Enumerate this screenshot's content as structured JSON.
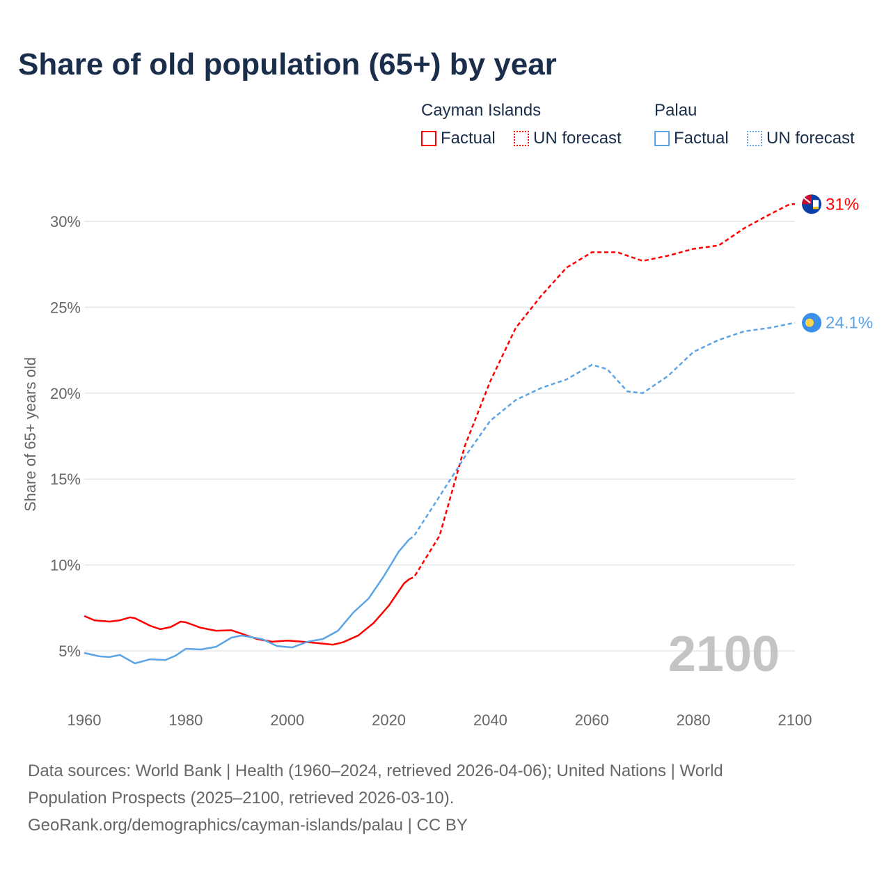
{
  "chart_data": {
    "type": "line",
    "title": "Share of old population (65+) by year",
    "xlabel": "",
    "ylabel": "Share of 65+ years old",
    "xlim": [
      1960,
      2100
    ],
    "x_ticks": [
      "1960",
      "1980",
      "2000",
      "2020",
      "2040",
      "2060",
      "2080",
      "2100"
    ],
    "y_ticks": [
      "5%",
      "10%",
      "15%",
      "20%",
      "25%",
      "30%"
    ],
    "y_tick_values": [
      5,
      10,
      15,
      20,
      25,
      30
    ],
    "grid": true,
    "year_watermark": "2100",
    "legend": {
      "placement": "top-right",
      "groups": [
        {
          "name": "Cayman Islands",
          "factual": "Factual",
          "forecast": "UN forecast"
        },
        {
          "name": "Palau",
          "factual": "Factual",
          "forecast": "UN forecast"
        }
      ]
    },
    "series": [
      {
        "name": "Cayman Islands",
        "color": "#ff0000",
        "end_label": "31%",
        "flag": "cayman-islands-flag",
        "factual": [
          [
            1960,
            7.03
          ],
          [
            1962,
            6.78
          ],
          [
            1965,
            6.7
          ],
          [
            1967,
            6.78
          ],
          [
            1969,
            6.95
          ],
          [
            1970,
            6.9
          ],
          [
            1973,
            6.46
          ],
          [
            1975,
            6.26
          ],
          [
            1977,
            6.38
          ],
          [
            1979,
            6.7
          ],
          [
            1980,
            6.66
          ],
          [
            1983,
            6.34
          ],
          [
            1986,
            6.17
          ],
          [
            1989,
            6.2
          ],
          [
            1991,
            6.0
          ],
          [
            1994,
            5.69
          ],
          [
            1997,
            5.53
          ],
          [
            2000,
            5.6
          ],
          [
            2003,
            5.53
          ],
          [
            2006,
            5.45
          ],
          [
            2009,
            5.36
          ],
          [
            2011,
            5.5
          ],
          [
            2014,
            5.9
          ],
          [
            2017,
            6.62
          ],
          [
            2020,
            7.63
          ],
          [
            2023,
            8.93
          ],
          [
            2024,
            9.17
          ]
        ],
        "forecast": [
          [
            2024,
            9.17
          ],
          [
            2025,
            9.3
          ],
          [
            2030,
            11.7
          ],
          [
            2035,
            16.95
          ],
          [
            2040,
            20.7
          ],
          [
            2045,
            23.8
          ],
          [
            2050,
            25.66
          ],
          [
            2055,
            27.3
          ],
          [
            2060,
            28.2
          ],
          [
            2065,
            28.2
          ],
          [
            2070,
            27.7
          ],
          [
            2075,
            28.0
          ],
          [
            2080,
            28.4
          ],
          [
            2085,
            28.6
          ],
          [
            2090,
            29.6
          ],
          [
            2095,
            30.4
          ],
          [
            2099,
            31.0
          ],
          [
            2100,
            31.0
          ]
        ]
      },
      {
        "name": "Palau",
        "color": "#5ba4e6",
        "end_label": "24.1%",
        "flag": "palau-flag",
        "factual": [
          [
            1960,
            4.88
          ],
          [
            1963,
            4.68
          ],
          [
            1965,
            4.64
          ],
          [
            1967,
            4.76
          ],
          [
            1970,
            4.27
          ],
          [
            1973,
            4.51
          ],
          [
            1976,
            4.47
          ],
          [
            1978,
            4.72
          ],
          [
            1980,
            5.12
          ],
          [
            1983,
            5.08
          ],
          [
            1986,
            5.24
          ],
          [
            1989,
            5.77
          ],
          [
            1991,
            5.89
          ],
          [
            1995,
            5.69
          ],
          [
            1998,
            5.28
          ],
          [
            2001,
            5.2
          ],
          [
            2004,
            5.53
          ],
          [
            2007,
            5.69
          ],
          [
            2010,
            6.17
          ],
          [
            2013,
            7.23
          ],
          [
            2016,
            8.04
          ],
          [
            2019,
            9.34
          ],
          [
            2022,
            10.8
          ],
          [
            2024,
            11.48
          ]
        ],
        "forecast": [
          [
            2024,
            11.48
          ],
          [
            2025,
            11.7
          ],
          [
            2030,
            14.0
          ],
          [
            2035,
            16.3
          ],
          [
            2040,
            18.4
          ],
          [
            2045,
            19.6
          ],
          [
            2050,
            20.3
          ],
          [
            2055,
            20.8
          ],
          [
            2060,
            21.65
          ],
          [
            2063,
            21.4
          ],
          [
            2067,
            20.1
          ],
          [
            2070,
            20.0
          ],
          [
            2075,
            21.0
          ],
          [
            2080,
            22.4
          ],
          [
            2085,
            23.1
          ],
          [
            2090,
            23.6
          ],
          [
            2095,
            23.8
          ],
          [
            2100,
            24.1
          ]
        ]
      }
    ]
  },
  "footer": {
    "line1": "Data sources: World Bank | Health (1960–2024, retrieved 2026-04-06); United Nations | World",
    "line2": "Population Prospects (2025–2100, retrieved 2026-03-10).",
    "line3": "GeoRank.org/demographics/cayman-islands/palau | CC BY"
  }
}
